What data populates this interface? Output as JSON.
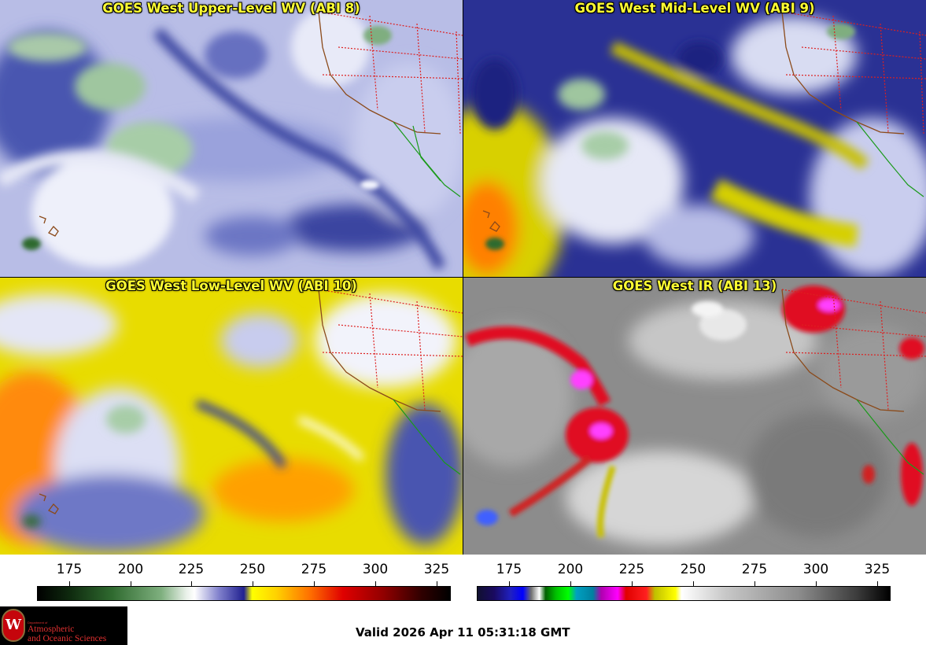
{
  "panels": [
    {
      "title": "GOES West Upper-Level WV (ABI 8)"
    },
    {
      "title": "GOES West Mid-Level WV (ABI 9)"
    },
    {
      "title": "GOES West Low-Level WV (ABI 10)"
    },
    {
      "title": "GOES West IR (ABI 13)"
    }
  ],
  "colorbars": [
    {
      "ticks": [
        "175",
        "200",
        "225",
        "250",
        "275",
        "300",
        "325"
      ]
    },
    {
      "ticks": [
        "175",
        "200",
        "225",
        "250",
        "275",
        "300",
        "325"
      ]
    }
  ],
  "logo": {
    "dept": "Department of",
    "line1": "Atmospheric",
    "line2": "and Oceanic Sciences",
    "seal": "W"
  },
  "valid_time": "Valid 2026 Apr 11 05:31:18 GMT"
}
